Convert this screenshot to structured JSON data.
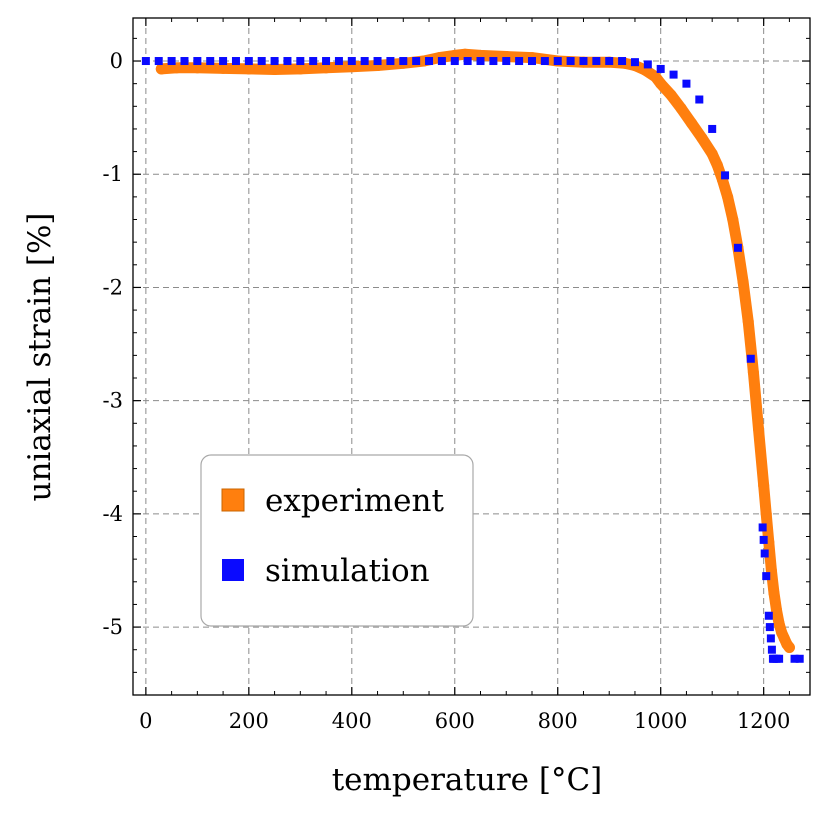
{
  "chart_data": {
    "type": "scatter",
    "xlabel": "temperature [°C]",
    "ylabel": "uniaxial strain [%]",
    "xlim": [
      -25,
      1290
    ],
    "ylim": [
      -5.6,
      0.38
    ],
    "x_ticks": [
      0,
      200,
      400,
      600,
      800,
      1000,
      1200
    ],
    "y_ticks": [
      0,
      -1,
      -2,
      -3,
      -4,
      -5
    ],
    "x_tick_labels": [
      "0",
      "200",
      "400",
      "600",
      "800",
      "1000",
      "1200"
    ],
    "y_tick_labels": [
      "0",
      "-1",
      "-2",
      "-3",
      "-4",
      "-5"
    ],
    "grid": true,
    "legend_position": "lower-left",
    "series": [
      {
        "name": "experiment",
        "color": "#ff7f0e",
        "marker": "circle",
        "x": [
          30,
          60,
          100,
          150,
          200,
          250,
          300,
          350,
          400,
          450,
          500,
          540,
          570,
          600,
          620,
          650,
          700,
          750,
          800,
          850,
          900,
          930,
          950,
          970,
          990,
          1000,
          1020,
          1040,
          1060,
          1080,
          1100,
          1110,
          1120,
          1130,
          1140,
          1150,
          1160,
          1170,
          1180,
          1190,
          1200,
          1205,
          1210,
          1215,
          1220,
          1225,
          1230,
          1235,
          1240,
          1245,
          1250
        ],
        "y": [
          -0.07,
          -0.06,
          -0.06,
          -0.065,
          -0.07,
          -0.075,
          -0.07,
          -0.06,
          -0.05,
          -0.04,
          -0.02,
          0.0,
          0.03,
          0.05,
          0.06,
          0.05,
          0.04,
          0.03,
          0.0,
          -0.01,
          -0.01,
          -0.02,
          -0.04,
          -0.08,
          -0.14,
          -0.2,
          -0.3,
          -0.42,
          -0.55,
          -0.68,
          -0.82,
          -0.92,
          -1.05,
          -1.2,
          -1.4,
          -1.65,
          -1.95,
          -2.3,
          -2.75,
          -3.25,
          -3.75,
          -4.0,
          -4.25,
          -4.5,
          -4.7,
          -4.85,
          -4.97,
          -5.05,
          -5.1,
          -5.15,
          -5.18
        ]
      },
      {
        "name": "simulation",
        "color": "#0a0aff",
        "marker": "square",
        "x": [
          0,
          25,
          50,
          75,
          100,
          125,
          150,
          175,
          200,
          225,
          250,
          275,
          300,
          325,
          350,
          375,
          400,
          425,
          450,
          475,
          500,
          525,
          550,
          575,
          600,
          625,
          650,
          675,
          700,
          725,
          750,
          775,
          800,
          825,
          850,
          875,
          900,
          925,
          950,
          975,
          1000,
          1025,
          1050,
          1075,
          1100,
          1125,
          1150,
          1175,
          1198,
          1200,
          1202,
          1205,
          1210,
          1212,
          1214,
          1216,
          1218,
          1220,
          1225,
          1230,
          1260,
          1270
        ],
        "y": [
          0,
          0,
          0,
          0,
          0,
          0,
          0,
          0,
          0,
          0,
          0,
          0,
          0,
          0,
          0,
          0,
          0,
          0,
          0,
          0,
          0,
          0,
          0,
          0,
          0,
          0,
          0,
          0,
          0,
          0,
          0,
          0,
          0,
          0,
          0,
          0,
          0,
          0,
          -0.01,
          -0.03,
          -0.07,
          -0.12,
          -0.2,
          -0.34,
          -0.6,
          -1.01,
          -1.65,
          -2.63,
          -4.12,
          -4.23,
          -4.35,
          -4.55,
          -4.9,
          -5.0,
          -5.1,
          -5.2,
          -5.28,
          -5.28,
          -5.28,
          -5.28,
          -5.28,
          -5.28
        ]
      }
    ]
  }
}
